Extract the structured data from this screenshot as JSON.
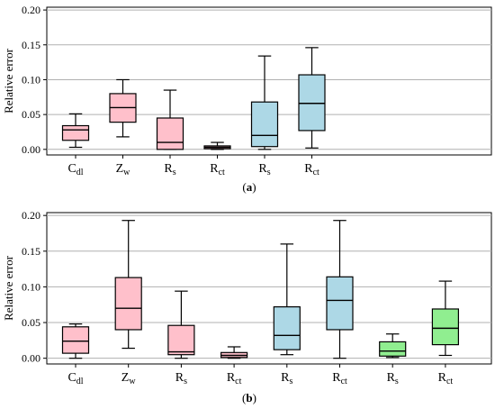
{
  "chart_data": [
    {
      "type": "box",
      "ylabel": "Relative error",
      "caption": "(a)",
      "ylim": [
        0,
        0.2
      ],
      "yticks": [
        "0.00",
        "0.05",
        "0.10",
        "0.15",
        "0.20"
      ],
      "grid": "horizontal",
      "boxes": [
        {
          "base": "C",
          "sub": "dl",
          "color": "#ffc0cb",
          "whisker_low": 0.003,
          "q1": 0.013,
          "median": 0.028,
          "q3": 0.034,
          "whisker_high": 0.051
        },
        {
          "base": "Z",
          "sub": "w",
          "color": "#ffc0cb",
          "whisker_low": 0.018,
          "q1": 0.039,
          "median": 0.06,
          "q3": 0.08,
          "whisker_high": 0.1
        },
        {
          "base": "R",
          "sub": "s",
          "color": "#ffc0cb",
          "whisker_low": 0.0,
          "q1": 0.0,
          "median": 0.01,
          "q3": 0.045,
          "whisker_high": 0.085
        },
        {
          "base": "R",
          "sub": "ct",
          "color": "#ffc0cb",
          "whisker_low": 0.0,
          "q1": 0.001,
          "median": 0.003,
          "q3": 0.005,
          "whisker_high": 0.01
        },
        {
          "base": "R",
          "sub": "s",
          "color": "#add8e6",
          "whisker_low": 0.0,
          "q1": 0.004,
          "median": 0.02,
          "q3": 0.068,
          "whisker_high": 0.134
        },
        {
          "base": "R",
          "sub": "ct",
          "color": "#add8e6",
          "whisker_low": 0.002,
          "q1": 0.027,
          "median": 0.066,
          "q3": 0.107,
          "whisker_high": 0.146
        }
      ]
    },
    {
      "type": "box",
      "ylabel": "Relative error",
      "caption": "(b)",
      "ylim": [
        0,
        0.2
      ],
      "yticks": [
        "0.00",
        "0.05",
        "0.10",
        "0.15",
        "0.20"
      ],
      "grid": "horizontal",
      "boxes": [
        {
          "base": "C",
          "sub": "dl",
          "color": "#ffc0cb",
          "whisker_low": 0.0,
          "q1": 0.007,
          "median": 0.024,
          "q3": 0.044,
          "whisker_high": 0.048
        },
        {
          "base": "Z",
          "sub": "w",
          "color": "#ffc0cb",
          "whisker_low": 0.014,
          "q1": 0.04,
          "median": 0.07,
          "q3": 0.113,
          "whisker_high": 0.193
        },
        {
          "base": "R",
          "sub": "s",
          "color": "#ffc0cb",
          "whisker_low": 0.0,
          "q1": 0.005,
          "median": 0.009,
          "q3": 0.046,
          "whisker_high": 0.094
        },
        {
          "base": "R",
          "sub": "ct",
          "color": "#ffc0cb",
          "whisker_low": 0.0,
          "q1": 0.001,
          "median": 0.004,
          "q3": 0.008,
          "whisker_high": 0.016
        },
        {
          "base": "R",
          "sub": "s",
          "color": "#add8e6",
          "whisker_low": 0.005,
          "q1": 0.012,
          "median": 0.032,
          "q3": 0.072,
          "whisker_high": 0.16
        },
        {
          "base": "R",
          "sub": "ct",
          "color": "#add8e6",
          "whisker_low": 0.0,
          "q1": 0.04,
          "median": 0.081,
          "q3": 0.114,
          "whisker_high": 0.193
        },
        {
          "base": "R",
          "sub": "s",
          "color": "#90ee90",
          "whisker_low": 0.001,
          "q1": 0.003,
          "median": 0.01,
          "q3": 0.023,
          "whisker_high": 0.034
        },
        {
          "base": "R",
          "sub": "ct",
          "color": "#90ee90",
          "whisker_low": 0.004,
          "q1": 0.019,
          "median": 0.042,
          "q3": 0.069,
          "whisker_high": 0.108
        }
      ]
    }
  ]
}
